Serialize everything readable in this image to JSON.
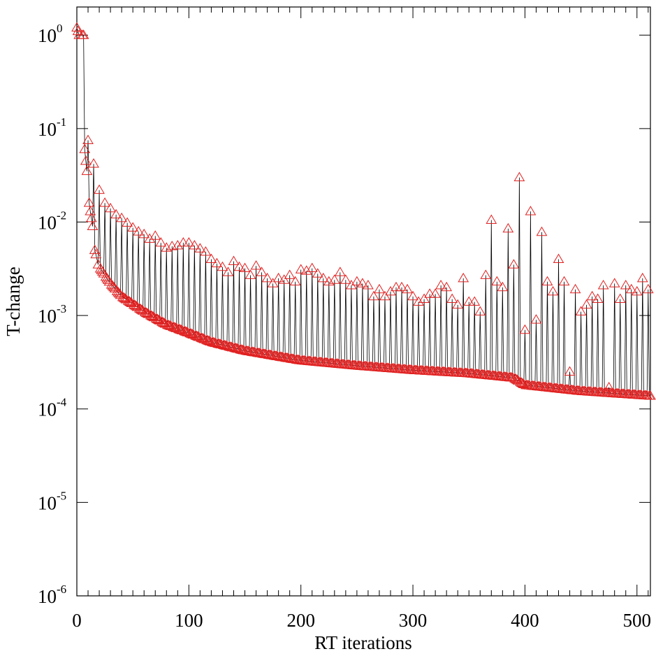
{
  "chart_data": {
    "type": "line",
    "title": "",
    "xlabel": "RT iterations",
    "ylabel": "T-change",
    "xlim": [
      0,
      512
    ],
    "ylim": [
      1e-06,
      2
    ],
    "y_scale": "log",
    "grid": false,
    "legend": "none",
    "marker": "open-triangle",
    "colors": {
      "line": "#000000",
      "marker": "#e02020"
    },
    "x_ticks": [
      0,
      100,
      200,
      300,
      400,
      500
    ],
    "x_tick_labels": [
      "0",
      "100",
      "200",
      "300",
      "400",
      "500"
    ],
    "y_ticks": [
      {
        "value": 1,
        "base": "10",
        "exp": "0"
      },
      {
        "value": 0.1,
        "base": "10",
        "exp": "-1"
      },
      {
        "value": 0.01,
        "base": "10",
        "exp": "-2"
      },
      {
        "value": 0.001,
        "base": "10",
        "exp": "-3"
      },
      {
        "value": 0.0001,
        "base": "10",
        "exp": "-4"
      },
      {
        "value": 1e-05,
        "base": "10",
        "exp": "-5"
      },
      {
        "value": 1e-06,
        "base": "10",
        "exp": "-6"
      }
    ],
    "series": [
      {
        "envelope_points": [
          [
            0,
            1.2
          ],
          [
            1,
            1.1
          ],
          [
            2,
            1.0
          ],
          [
            5,
            1.0
          ],
          [
            6,
            1.0
          ],
          [
            7,
            0.06
          ],
          [
            8,
            0.045
          ],
          [
            9,
            0.035
          ],
          [
            10,
            0.075
          ],
          [
            11,
            0.016
          ],
          [
            12,
            0.013
          ],
          [
            13,
            0.011
          ],
          [
            14,
            0.009
          ],
          [
            15,
            0.042
          ],
          [
            16,
            0.005
          ],
          [
            17,
            0.0045
          ],
          [
            19,
            0.0035
          ],
          [
            20,
            0.022
          ]
        ],
        "baseline": [
          [
            20,
            0.0033
          ],
          [
            30,
            0.0022
          ],
          [
            40,
            0.0016
          ],
          [
            60,
            0.0011
          ],
          [
            80,
            0.0008
          ],
          [
            100,
            0.00065
          ],
          [
            120,
            0.00052
          ],
          [
            150,
            0.00042
          ],
          [
            200,
            0.00033
          ],
          [
            250,
            0.00029
          ],
          [
            300,
            0.00026
          ],
          [
            350,
            0.00024
          ],
          [
            390,
            0.000215
          ],
          [
            400,
            0.00018
          ],
          [
            450,
            0.000155
          ],
          [
            512,
            0.000138
          ]
        ],
        "peak_period": 5,
        "peaks": [
          [
            20,
            0.022
          ],
          [
            25,
            0.016
          ],
          [
            30,
            0.014
          ],
          [
            35,
            0.012
          ],
          [
            40,
            0.011
          ],
          [
            45,
            0.0098
          ],
          [
            50,
            0.0087
          ],
          [
            55,
            0.0079
          ],
          [
            60,
            0.0074
          ],
          [
            65,
            0.0066
          ],
          [
            70,
            0.0071
          ],
          [
            75,
            0.006
          ],
          [
            80,
            0.0053
          ],
          [
            85,
            0.0055
          ],
          [
            90,
            0.0056
          ],
          [
            95,
            0.006
          ],
          [
            100,
            0.006
          ],
          [
            105,
            0.0056
          ],
          [
            110,
            0.0052
          ],
          [
            115,
            0.0048
          ],
          [
            120,
            0.004
          ],
          [
            125,
            0.0036
          ],
          [
            130,
            0.0033
          ],
          [
            135,
            0.0029
          ],
          [
            140,
            0.0038
          ],
          [
            145,
            0.0033
          ],
          [
            150,
            0.0032
          ],
          [
            155,
            0.0027
          ],
          [
            160,
            0.0034
          ],
          [
            165,
            0.0029
          ],
          [
            170,
            0.0025
          ],
          [
            175,
            0.0022
          ],
          [
            180,
            0.0025
          ],
          [
            185,
            0.0024
          ],
          [
            190,
            0.0027
          ],
          [
            195,
            0.0023
          ],
          [
            200,
            0.0031
          ],
          [
            205,
            0.003
          ],
          [
            210,
            0.0032
          ],
          [
            215,
            0.0028
          ],
          [
            220,
            0.0025
          ],
          [
            225,
            0.0023
          ],
          [
            230,
            0.0024
          ],
          [
            235,
            0.0029
          ],
          [
            240,
            0.0024
          ],
          [
            245,
            0.0021
          ],
          [
            250,
            0.0023
          ],
          [
            255,
            0.0022
          ],
          [
            260,
            0.0021
          ],
          [
            265,
            0.0016
          ],
          [
            270,
            0.0019
          ],
          [
            275,
            0.0016
          ],
          [
            280,
            0.0018
          ],
          [
            285,
            0.002
          ],
          [
            290,
            0.002
          ],
          [
            295,
            0.0019
          ],
          [
            300,
            0.0016
          ],
          [
            305,
            0.0014
          ],
          [
            310,
            0.0015
          ],
          [
            315,
            0.0017
          ],
          [
            320,
            0.0017
          ],
          [
            325,
            0.0021
          ],
          [
            330,
            0.002
          ],
          [
            335,
            0.0015
          ],
          [
            340,
            0.0013
          ],
          [
            345,
            0.0025
          ],
          [
            350,
            0.0014
          ],
          [
            355,
            0.0014
          ],
          [
            360,
            0.0011
          ],
          [
            365,
            0.0027
          ],
          [
            370,
            0.0105
          ],
          [
            375,
            0.0023
          ],
          [
            380,
            0.002
          ],
          [
            385,
            0.0085
          ],
          [
            390,
            0.0035
          ],
          [
            395,
            0.03
          ],
          [
            400,
            0.0007
          ],
          [
            405,
            0.013
          ],
          [
            410,
            0.0009
          ],
          [
            415,
            0.0078
          ],
          [
            420,
            0.0023
          ],
          [
            425,
            0.0018
          ],
          [
            430,
            0.004
          ],
          [
            435,
            0.0023
          ],
          [
            440,
            0.00025
          ],
          [
            445,
            0.0019
          ],
          [
            450,
            0.0011
          ],
          [
            455,
            0.0013
          ],
          [
            460,
            0.0016
          ],
          [
            465,
            0.0015
          ],
          [
            470,
            0.0021
          ],
          [
            475,
            0.00017
          ],
          [
            480,
            0.0022
          ],
          [
            485,
            0.0015
          ],
          [
            490,
            0.0021
          ],
          [
            495,
            0.0019
          ],
          [
            500,
            0.0018
          ],
          [
            505,
            0.0025
          ],
          [
            510,
            0.0019
          ]
        ]
      }
    ]
  }
}
